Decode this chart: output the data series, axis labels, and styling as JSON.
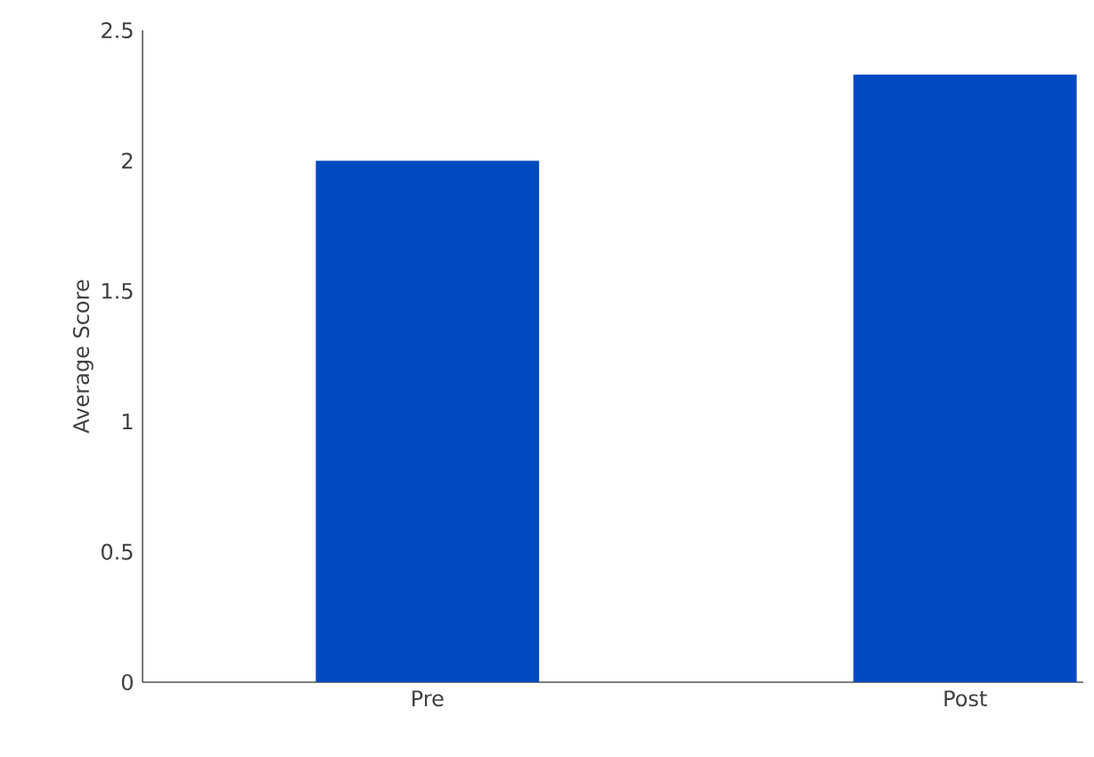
{
  "chart_data": {
    "type": "bar",
    "ylabel": "Average Score",
    "categories": [
      "Pre",
      "Post"
    ],
    "values": [
      2.0,
      2.33
    ],
    "color": "#004ac1",
    "ylim": [
      0,
      2.5
    ],
    "yticks": [
      0,
      0.5,
      1,
      1.5,
      2,
      2.5
    ]
  }
}
